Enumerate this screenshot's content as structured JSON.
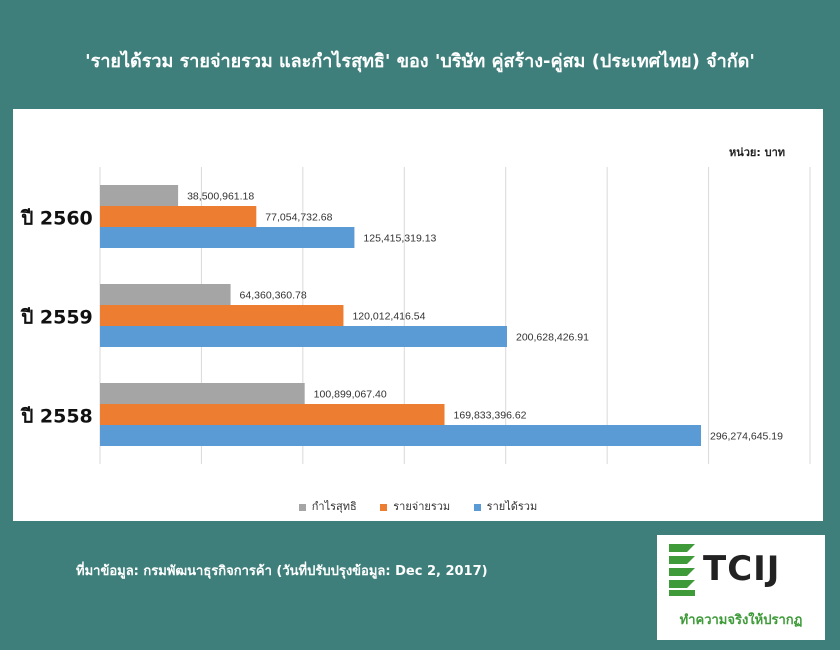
{
  "title": "'รายได้รวม รายจ่ายรวม และกำไรสุทธิ' ของ 'บริษัท คู่สร้าง-คู่สม (ประเทศไทย) จำกัด'",
  "unit_label": "หน่วย: บาท",
  "source": "ที่มาข้อมูล: กรมพัฒนาธุรกิจการค้า (วันที่ปรับปรุงข้อมูล: Dec 2, 2017)",
  "logo": {
    "name": "TCIJ",
    "tagline": "ทำความจริงให้ปรากฏ"
  },
  "chart_data": {
    "type": "bar",
    "orientation": "horizontal",
    "categories": [
      "ปี 2560",
      "ปี 2559",
      "ปี 2558"
    ],
    "series": [
      {
        "name": "กำไรสุทธิ",
        "color": "#a5a5a5",
        "values": [
          38500961.18,
          64360360.78,
          100899067.4
        ],
        "labels": [
          "38,500,961.18",
          "64,360,360.78",
          "100,899,067.40"
        ]
      },
      {
        "name": "รายจ่ายรวม",
        "color": "#ed7d31",
        "values": [
          77054732.68,
          120012416.54,
          169833396.62
        ],
        "labels": [
          "77,054,732.68",
          "120,012,416.54",
          "169,833,396.62"
        ]
      },
      {
        "name": "รายได้รวม",
        "color": "#5b9bd5",
        "values": [
          125415319.13,
          200628426.91,
          296274645.19
        ],
        "labels": [
          "125,415,319.13",
          "200,628,426.91",
          "296,274,645.19"
        ]
      }
    ],
    "xlim": [
      0,
      350000000
    ],
    "grid": true,
    "legend": "bottom"
  }
}
